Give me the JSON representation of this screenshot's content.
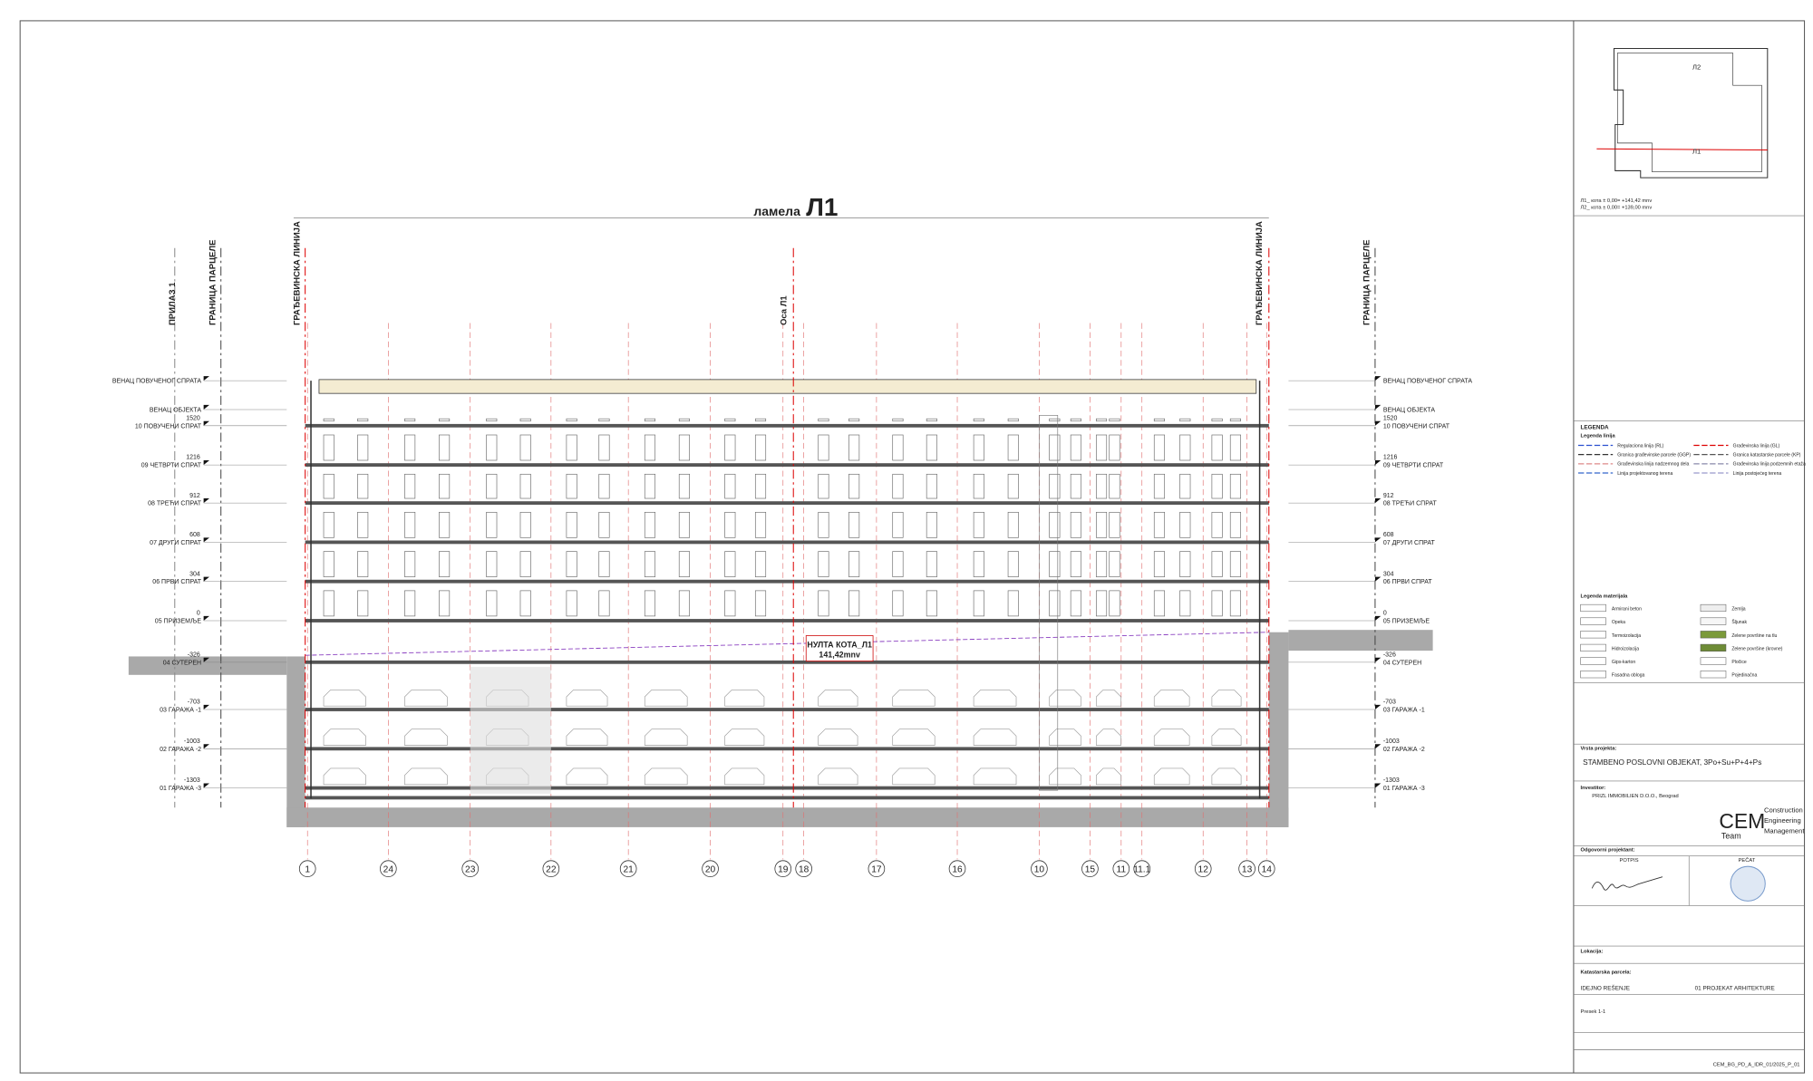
{
  "drawing": {
    "title_prefix": "ламела",
    "title_main": "Л1",
    "vertical_labels": [
      "ПРИЛАЗ 1",
      "ГРАНИЦА ПАРЦЕЛЕ",
      "ГРАЂЕВИНСКА ЛИНИЈА",
      "Оса Л1",
      "ГРАЂЕВИНСКА ЛИНИЈА",
      "ГРАНИЦА ПАРЦЕЛЕ"
    ],
    "levels": [
      {
        "name": "ВЕНАЦ ПОВУЧЕНОГ СПРАТА"
      },
      {
        "name": "ВЕНАЦ ОБЈЕКТА"
      },
      {
        "name": "10 ПОВУЧЕНИ СПРАТ",
        "mark": "1520"
      },
      {
        "name": "09 ЧЕТВРТИ СПРАТ",
        "mark": "1216"
      },
      {
        "name": "08 ТРЕЋИ СПРАТ",
        "mark": "912"
      },
      {
        "name": "07 ДРУГИ СПРАТ",
        "mark": "608"
      },
      {
        "name": "06 ПРВИ СПРАТ",
        "mark": "304"
      },
      {
        "name": "05 ПРИЗЕМЉЕ",
        "mark": "0"
      },
      {
        "name": "04 СУТЕРЕН",
        "mark": "-326"
      },
      {
        "name": "03 ГАРАЖА -1",
        "mark": "-703"
      },
      {
        "name": "02 ГАРАЖА -2",
        "mark": "-1003"
      },
      {
        "name": "01 ГАРАЖА -3",
        "mark": "-1303"
      }
    ],
    "axes": [
      "1",
      "24",
      "23",
      "22",
      "21",
      "20",
      "19",
      "18",
      "17",
      "16",
      "10",
      "15",
      "11",
      "11.1",
      "12",
      "13",
      "14"
    ],
    "zero_label": "НУЛТА КОТА_Л1",
    "zero_value": "141,42mnv"
  },
  "keyplan": {
    "labels": [
      "Л2",
      "Л1"
    ],
    "notes": [
      "Л1_ кота ± 0,00= +141,42 mnv",
      "Л2_ кота ± 0,00= +139,00 mnv"
    ]
  },
  "legend": {
    "title": "LEGENDA",
    "lines_title": "Legenda linija",
    "lines": [
      "Regulaciona linija (RL)",
      "Građevinska linija (GL)",
      "Granica građevinske parcele (GGP)",
      "Granica katastarske parcele (KP)",
      "Građevinska linija nadzemnog dela",
      "Građevinska linija podzemnih etaža",
      "Linija projektovanog terena",
      "Linija postojećeg terena"
    ],
    "materials_title": "Legenda materijala",
    "materials": [
      "Armirani beton",
      "Zemlja",
      "Opeka",
      "Šljunak",
      "Termoizolacija",
      "Zelene površine na tlu",
      "Hidroizolacija",
      "Zelene površine (krovne)",
      "Gips-karton",
      "Pločice",
      "Fasadna obloga",
      "Pojedinačna"
    ]
  },
  "title_block": {
    "project_type_label": "Vrsta projekta:",
    "project_name": "STAMBENO POSLOVNI OBJEKAT, 3Po+Su+P+4+Ps",
    "investor_label": "Investitor:",
    "investor": "PRIZL IMMOBILIEN D.O.O., Beograd",
    "logo_main": "CEM",
    "logo_sub": "Team",
    "logo_lines": [
      "Construction",
      "Engineering",
      "Management"
    ],
    "designer_label": "Odgovorni projektant:",
    "signature_label": "POTPIS",
    "stamp_label": "PEČAT",
    "location_label": "Lokacija:",
    "cadastre_label": "Katastarska parcela:",
    "doc_type": "IDEJNO REŠENJE",
    "doc_part": "01 PROJEKAT ARHITEKTURE",
    "sheet_name": "Presek 1-1",
    "footer_code": "CEM_BG_PD_A_IDR_01/2025_P_01"
  }
}
